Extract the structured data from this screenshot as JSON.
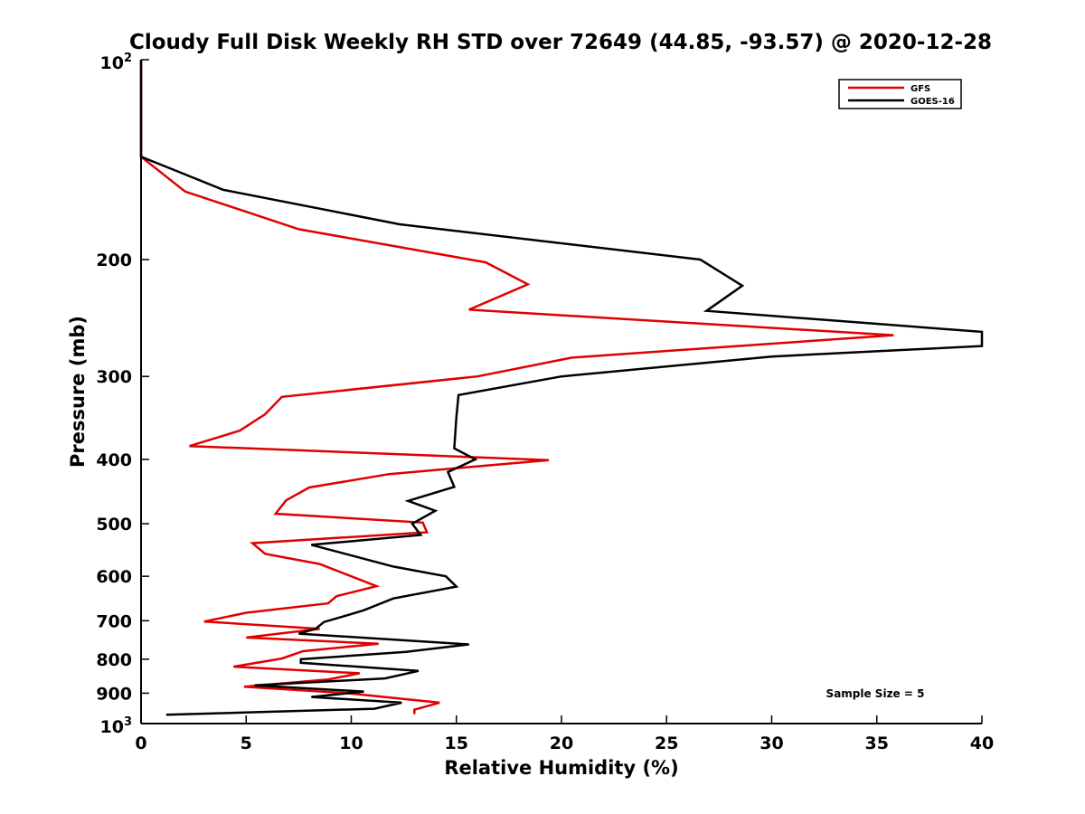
{
  "chart_data": {
    "type": "line",
    "title": "Cloudy Full Disk Weekly RH STD over 72649 (44.85, -93.57) @ 2020-12-28",
    "xlabel": "Relative Humidity (%)",
    "ylabel": "Pressure (mb)",
    "xlim": [
      0,
      40
    ],
    "ylim": [
      1000,
      100
    ],
    "y_scale": "log",
    "y_reversed": true,
    "grid": false,
    "legend_position": "top-right",
    "x_ticks": [
      0,
      5,
      10,
      15,
      20,
      25,
      30,
      35,
      40
    ],
    "x_tick_labels": [
      "0",
      "5",
      "10",
      "15",
      "20",
      "25",
      "30",
      "35",
      "40"
    ],
    "y_ticks": [
      200,
      300,
      400,
      500,
      600,
      700,
      800,
      900
    ],
    "y_tick_labels": [
      "200",
      "300",
      "400",
      "500",
      "600",
      "700",
      "800",
      "900"
    ],
    "y_top_label": {
      "base": "10",
      "exp": "2"
    },
    "y_bottom_label": {
      "base": "10",
      "exp": "3"
    },
    "annotation": "Sample Size = 5",
    "series": [
      {
        "name": "GFS",
        "color": "#e00000",
        "points": [
          [
            0,
            100
          ],
          [
            0,
            140
          ],
          [
            2.1,
            158
          ],
          [
            7.5,
            180
          ],
          [
            16.4,
            202
          ],
          [
            18.4,
            218
          ],
          [
            15.6,
            238
          ],
          [
            35.8,
            260
          ],
          [
            20.5,
            281
          ],
          [
            16.0,
            300
          ],
          [
            6.7,
            322
          ],
          [
            5.9,
            342
          ],
          [
            4.7,
            362
          ],
          [
            2.3,
            382
          ],
          [
            19.4,
            401
          ],
          [
            11.8,
            421
          ],
          [
            8.0,
            441
          ],
          [
            6.9,
            461
          ],
          [
            6.4,
            483
          ],
          [
            13.4,
            498
          ],
          [
            13.6,
            515
          ],
          [
            5.3,
            535
          ],
          [
            5.9,
            555
          ],
          [
            8.5,
            575
          ],
          [
            10.0,
            600
          ],
          [
            11.2,
            621
          ],
          [
            9.3,
            643
          ],
          [
            8.9,
            659
          ],
          [
            5.0,
            681
          ],
          [
            3.0,
            702
          ],
          [
            8.5,
            720
          ],
          [
            5.0,
            742
          ],
          [
            11.3,
            758
          ],
          [
            7.7,
            778
          ],
          [
            6.7,
            798
          ],
          [
            4.4,
            821
          ],
          [
            10.4,
            840
          ],
          [
            8.9,
            858
          ],
          [
            4.9,
            880
          ],
          [
            9.8,
            900
          ],
          [
            14.2,
            930
          ],
          [
            13.0,
            953
          ],
          [
            13.0,
            968
          ]
        ]
      },
      {
        "name": "GOES-16",
        "color": "#000000",
        "points": [
          [
            0,
            100
          ],
          [
            0,
            140
          ],
          [
            1.9,
            148
          ],
          [
            3.9,
            157
          ],
          [
            12.3,
            177
          ],
          [
            26.6,
            200
          ],
          [
            28.6,
            219
          ],
          [
            26.9,
            239
          ],
          [
            40,
            257
          ],
          [
            40,
            270
          ],
          [
            30,
            280
          ],
          [
            20,
            300
          ],
          [
            15.1,
            320
          ],
          [
            15.0,
            345
          ],
          [
            14.9,
            385
          ],
          [
            15.9,
            400
          ],
          [
            14.6,
            418
          ],
          [
            14.9,
            440
          ],
          [
            12.7,
            462
          ],
          [
            14.0,
            478
          ],
          [
            12.9,
            500
          ],
          [
            13.3,
            520
          ],
          [
            8.1,
            538
          ],
          [
            12.0,
            580
          ],
          [
            14.5,
            600
          ],
          [
            15.0,
            622
          ],
          [
            12.0,
            648
          ],
          [
            10.6,
            675
          ],
          [
            9.6,
            690
          ],
          [
            8.7,
            703
          ],
          [
            8.3,
            720
          ],
          [
            7.5,
            732
          ],
          [
            15.6,
            760
          ],
          [
            12.6,
            780
          ],
          [
            7.6,
            800
          ],
          [
            7.6,
            810
          ],
          [
            13.2,
            833
          ],
          [
            11.6,
            855
          ],
          [
            5.4,
            876
          ],
          [
            10.6,
            895
          ],
          [
            8.1,
            912
          ],
          [
            12.4,
            930
          ],
          [
            11.1,
            950
          ],
          [
            1.2,
            970
          ]
        ]
      }
    ]
  }
}
